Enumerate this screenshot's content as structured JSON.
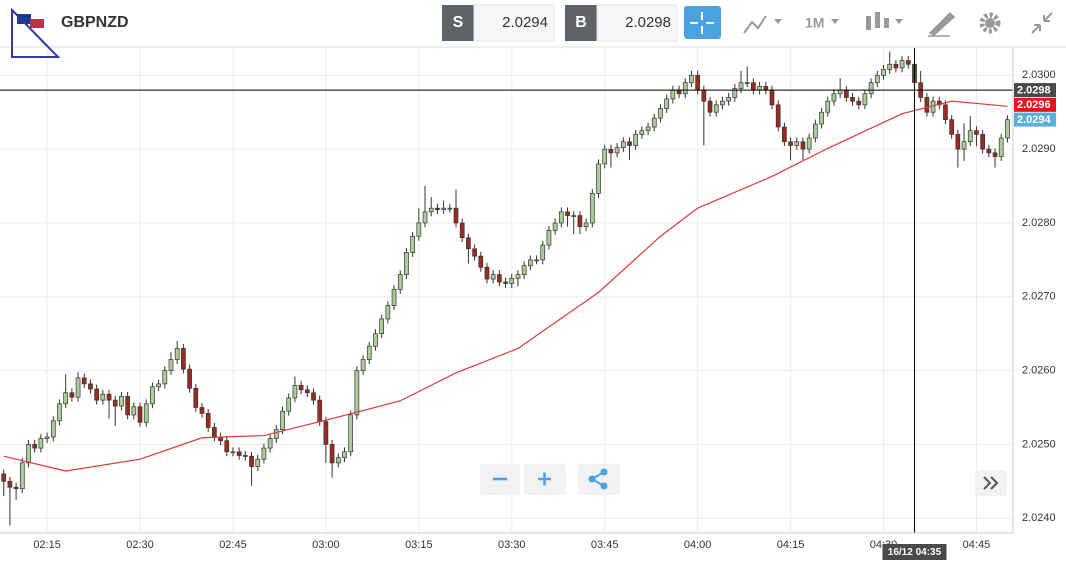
{
  "toolbar": {
    "symbol": "GBPNZD",
    "sell_label": "S",
    "sell_price": 2.0294,
    "buy_label": "B",
    "buy_price": 2.0298,
    "timeframe": "1M"
  },
  "chart_data": {
    "type": "candlestick",
    "x": [
      128,
      129,
      130,
      131,
      132,
      133,
      134,
      135,
      136,
      137,
      138,
      139,
      140,
      141,
      142,
      143,
      144,
      145,
      146,
      147,
      148,
      149,
      150,
      151,
      152,
      153,
      154,
      155,
      156,
      157,
      158,
      159,
      160,
      161,
      162,
      163,
      164,
      165,
      166,
      167,
      168,
      169,
      170,
      171,
      172,
      173,
      174,
      175,
      176,
      177,
      178,
      179,
      180,
      181,
      182,
      183,
      184,
      185,
      186,
      187,
      188,
      189,
      190,
      191,
      192,
      193,
      194,
      195,
      196,
      197,
      198,
      199,
      200,
      201,
      202,
      203,
      204,
      205,
      206,
      207,
      208,
      209,
      210,
      211,
      212,
      213,
      214,
      215,
      216,
      217,
      218,
      219,
      220,
      221,
      222,
      223,
      224,
      225,
      226,
      227,
      228,
      229,
      230,
      231,
      232,
      233,
      234,
      235,
      236,
      237,
      238,
      239,
      240,
      241,
      242,
      243,
      244,
      245,
      246,
      247,
      248,
      249,
      250,
      251,
      252,
      253,
      254,
      255,
      256,
      257,
      258,
      259,
      260,
      261,
      262,
      263,
      264,
      265,
      266,
      267,
      268,
      269,
      270,
      271,
      272,
      273,
      274,
      275,
      276,
      277,
      278,
      279,
      280,
      281,
      282,
      283,
      284,
      285,
      286,
      287,
      288,
      289,
      290
    ],
    "open": [
      2.0246,
      2.0245,
      2.02442,
      2.0244,
      2.02475,
      2.025,
      2.02495,
      2.02508,
      2.0251,
      2.02532,
      2.02555,
      2.0257,
      2.02564,
      2.0259,
      2.02582,
      2.02575,
      2.0256,
      2.02568,
      2.0256,
      2.02552,
      2.02565,
      2.0254,
      2.02551,
      2.0253,
      2.02555,
      2.02578,
      2.02582,
      2.026,
      2.02615,
      2.0263,
      2.02602,
      2.02576,
      2.0255,
      2.02542,
      2.02523,
      2.0251,
      2.02505,
      2.0249,
      2.0249,
      2.02485,
      2.02484,
      2.0247,
      2.0248,
      2.02495,
      2.02508,
      2.0252,
      2.02545,
      2.02563,
      2.0258,
      2.02574,
      2.0257,
      2.0256,
      2.02531,
      2.025,
      2.02475,
      2.02482,
      2.0249,
      2.0254,
      2.026,
      2.02615,
      2.02633,
      2.0265,
      2.0267,
      2.02688,
      2.0271,
      2.0273,
      2.0276,
      2.02782,
      2.028,
      2.02815,
      2.0282,
      2.02818,
      2.0282,
      2.0282,
      2.028,
      2.0278,
      2.02765,
      2.02755,
      2.0274,
      2.02724,
      2.0273,
      2.0272,
      2.02718,
      2.02725,
      2.0273,
      2.02742,
      2.0275,
      2.0275,
      2.0277,
      2.0279,
      2.028,
      2.02815,
      2.0281,
      2.0281,
      2.02795,
      2.028,
      2.0284,
      2.0288,
      2.029,
      2.02895,
      2.02902,
      2.0291,
      2.02905,
      2.0292,
      2.02925,
      2.0293,
      2.02942,
      2.02955,
      2.02968,
      2.0298,
      2.02975,
      2.0299,
      2.03,
      2.0298,
      2.02965,
      2.0295,
      2.0296,
      2.02965,
      2.0297,
      2.02982,
      2.0299,
      2.0299,
      2.0298,
      2.02985,
      2.0298,
      2.0296,
      2.0293,
      2.0291,
      2.02905,
      2.0291,
      2.029,
      2.02915,
      2.02934,
      2.0295,
      2.02965,
      2.02975,
      2.0298,
      2.0297,
      2.02965,
      2.0296,
      2.02975,
      2.0299,
      2.03,
      2.03008,
      2.03015,
      2.0301,
      2.0302,
      2.03015,
      2.0299,
      2.0297,
      2.0295,
      2.02965,
      2.0296,
      2.0294,
      2.0292,
      2.029,
      2.0291,
      2.02925,
      2.0292,
      2.029,
      2.02895,
      2.0289,
      2.02915
    ],
    "high": [
      2.02466,
      2.02456,
      2.02448,
      2.02482,
      2.02506,
      2.02506,
      2.02514,
      2.02516,
      2.02538,
      2.02561,
      2.02595,
      2.02576,
      2.02598,
      2.02596,
      2.02588,
      2.02581,
      2.02574,
      2.02574,
      2.02566,
      2.02571,
      2.02571,
      2.02557,
      2.02557,
      2.02561,
      2.02584,
      2.02588,
      2.02606,
      2.02625,
      2.0264,
      2.02636,
      2.02608,
      2.02582,
      2.02556,
      2.02548,
      2.02529,
      2.02516,
      2.02511,
      2.02496,
      2.02496,
      2.02491,
      2.0249,
      2.02486,
      2.02501,
      2.02514,
      2.02526,
      2.02551,
      2.02569,
      2.02592,
      2.02586,
      2.0258,
      2.02576,
      2.02566,
      2.02537,
      2.02506,
      2.02488,
      2.02496,
      2.02546,
      2.02606,
      2.02621,
      2.02639,
      2.02656,
      2.02676,
      2.02694,
      2.02716,
      2.02736,
      2.02766,
      2.02788,
      2.0282,
      2.0285,
      2.02835,
      2.02826,
      2.0283,
      2.02826,
      2.02845,
      2.02806,
      2.02786,
      2.02771,
      2.02761,
      2.02746,
      2.02736,
      2.02736,
      2.02726,
      2.02731,
      2.02736,
      2.02748,
      2.02756,
      2.02756,
      2.02776,
      2.02796,
      2.02806,
      2.02821,
      2.02821,
      2.02816,
      2.02816,
      2.02806,
      2.02846,
      2.02886,
      2.02906,
      2.02906,
      2.02908,
      2.02916,
      2.02916,
      2.02926,
      2.02931,
      2.02936,
      2.02948,
      2.02961,
      2.02974,
      2.02986,
      2.02986,
      2.02996,
      2.03006,
      2.03006,
      2.02986,
      2.02971,
      2.02966,
      2.02971,
      2.02976,
      2.02988,
      2.03006,
      2.03012,
      2.02996,
      2.02991,
      2.02991,
      2.02986,
      2.02966,
      2.02936,
      2.02916,
      2.02916,
      2.02916,
      2.02921,
      2.0294,
      2.02956,
      2.02971,
      2.02981,
      2.02996,
      2.02986,
      2.02976,
      2.02971,
      2.02981,
      2.02996,
      2.03006,
      2.03014,
      2.03032,
      2.03021,
      2.03026,
      2.03026,
      2.03021,
      2.03006,
      2.02976,
      2.02971,
      2.02971,
      2.02966,
      2.02946,
      2.02926,
      2.02935,
      2.02945,
      2.02931,
      2.02926,
      2.02906,
      2.02901,
      2.02921,
      2.02946
    ],
    "low": [
      2.0243,
      2.0239,
      2.02425,
      2.02434,
      2.02469,
      2.02489,
      2.02489,
      2.02502,
      2.02504,
      2.02526,
      2.02549,
      2.02558,
      2.02558,
      2.02576,
      2.02569,
      2.02554,
      2.02554,
      2.02535,
      2.02525,
      2.02546,
      2.02534,
      2.02534,
      2.02524,
      2.02524,
      2.02549,
      2.02572,
      2.02576,
      2.02594,
      2.02609,
      2.02596,
      2.0257,
      2.02544,
      2.02536,
      2.02517,
      2.02504,
      2.02499,
      2.02484,
      2.02484,
      2.02479,
      2.02478,
      2.02444,
      2.02464,
      2.02474,
      2.02489,
      2.02502,
      2.02514,
      2.02539,
      2.02557,
      2.02568,
      2.02564,
      2.02554,
      2.02525,
      2.02475,
      2.02455,
      2.02469,
      2.02476,
      2.02484,
      2.02534,
      2.02594,
      2.02609,
      2.02627,
      2.02644,
      2.02664,
      2.02682,
      2.02704,
      2.02724,
      2.02754,
      2.02776,
      2.02794,
      2.02809,
      2.02812,
      2.02812,
      2.02814,
      2.02794,
      2.02774,
      2.02745,
      2.02749,
      2.02734,
      2.02718,
      2.02718,
      2.02714,
      2.02712,
      2.02712,
      2.02714,
      2.02724,
      2.02736,
      2.02744,
      2.02744,
      2.02764,
      2.02784,
      2.02794,
      2.02795,
      2.02785,
      2.02785,
      2.02789,
      2.02794,
      2.02834,
      2.02874,
      2.02875,
      2.02889,
      2.02896,
      2.02885,
      2.02899,
      2.02914,
      2.02919,
      2.02924,
      2.02936,
      2.02949,
      2.02962,
      2.02969,
      2.02969,
      2.02984,
      2.02974,
      2.02905,
      2.02944,
      2.02944,
      2.02954,
      2.02959,
      2.02964,
      2.02976,
      2.02984,
      2.02974,
      2.02974,
      2.02974,
      2.02954,
      2.02924,
      2.02904,
      2.02885,
      2.02899,
      2.02885,
      2.02894,
      2.02909,
      2.02928,
      2.02944,
      2.02959,
      2.02969,
      2.02964,
      2.02959,
      2.02954,
      2.02954,
      2.02969,
      2.02984,
      2.02994,
      2.03002,
      2.03004,
      2.03004,
      2.03009,
      2.02984,
      2.02964,
      2.02944,
      2.02944,
      2.02954,
      2.02934,
      2.02914,
      2.02875,
      2.02884,
      2.02904,
      2.02904,
      2.02894,
      2.02889,
      2.02875,
      2.02884,
      2.02909
    ],
    "close": [
      2.0245,
      2.02442,
      2.0244,
      2.02475,
      2.025,
      2.02495,
      2.02508,
      2.0251,
      2.02532,
      2.02555,
      2.0257,
      2.02564,
      2.0259,
      2.02582,
      2.02575,
      2.0256,
      2.02568,
      2.0256,
      2.02552,
      2.02565,
      2.0254,
      2.02551,
      2.0253,
      2.02555,
      2.02578,
      2.02582,
      2.026,
      2.02615,
      2.0263,
      2.02602,
      2.02576,
      2.0255,
      2.02542,
      2.02523,
      2.0251,
      2.02505,
      2.0249,
      2.0249,
      2.02485,
      2.02484,
      2.0247,
      2.0248,
      2.02495,
      2.02508,
      2.0252,
      2.02545,
      2.02563,
      2.0258,
      2.02574,
      2.0257,
      2.0256,
      2.02531,
      2.025,
      2.02475,
      2.02482,
      2.0249,
      2.0254,
      2.026,
      2.02615,
      2.02633,
      2.0265,
      2.0267,
      2.02688,
      2.0271,
      2.0273,
      2.0276,
      2.02782,
      2.028,
      2.02815,
      2.0282,
      2.02818,
      2.0282,
      2.0282,
      2.028,
      2.0278,
      2.02765,
      2.02755,
      2.0274,
      2.02724,
      2.0273,
      2.0272,
      2.02718,
      2.02725,
      2.0273,
      2.02742,
      2.0275,
      2.0275,
      2.0277,
      2.0279,
      2.028,
      2.02815,
      2.0281,
      2.0281,
      2.02795,
      2.028,
      2.0284,
      2.0288,
      2.029,
      2.02895,
      2.02902,
      2.0291,
      2.02905,
      2.0292,
      2.02925,
      2.0293,
      2.02942,
      2.02955,
      2.02968,
      2.0298,
      2.02975,
      2.0299,
      2.03,
      2.0298,
      2.02965,
      2.0295,
      2.0296,
      2.02965,
      2.0297,
      2.02982,
      2.0299,
      2.0299,
      2.0298,
      2.02985,
      2.0298,
      2.0296,
      2.0293,
      2.0291,
      2.02905,
      2.0291,
      2.029,
      2.02915,
      2.02934,
      2.0295,
      2.02965,
      2.02975,
      2.0298,
      2.0297,
      2.02965,
      2.0296,
      2.02975,
      2.0299,
      2.03,
      2.03008,
      2.03015,
      2.0301,
      2.0302,
      2.03015,
      2.0299,
      2.0297,
      2.0295,
      2.02965,
      2.0296,
      2.0294,
      2.0292,
      2.029,
      2.0291,
      2.02925,
      2.0292,
      2.029,
      2.02895,
      2.0289,
      2.02915,
      2.0294
    ],
    "up_color": "#a8cf96",
    "down_color": "#9e2a1e",
    "moving_average": {
      "color": "#e0393e",
      "x": [
        128,
        138,
        150,
        160,
        170,
        181,
        192,
        201,
        211,
        224,
        234,
        240,
        252,
        261,
        273,
        281,
        290
      ],
      "values": [
        2.02484,
        2.02464,
        2.0248,
        2.02509,
        2.02512,
        2.02535,
        2.02559,
        2.02597,
        2.0263,
        2.02706,
        2.02782,
        2.0282,
        2.02863,
        2.02901,
        2.02948,
        2.02965,
        2.02958
      ]
    },
    "xlim": [
      127.4,
      290.9
    ],
    "xticks": [
      {
        "value": 135,
        "label": "02:15"
      },
      {
        "value": 150,
        "label": "02:30"
      },
      {
        "value": 165,
        "label": "02:45"
      },
      {
        "value": 180,
        "label": "03:00"
      },
      {
        "value": 195,
        "label": "03:15"
      },
      {
        "value": 210,
        "label": "03:30"
      },
      {
        "value": 225,
        "label": "03:45"
      },
      {
        "value": 240,
        "label": "04:00"
      },
      {
        "value": 255,
        "label": "04:15"
      },
      {
        "value": 270,
        "label": "04:30"
      },
      {
        "value": 285,
        "label": "04:45"
      }
    ],
    "ylim": [
      2.0238,
      2.03037
    ],
    "yticks": [
      {
        "value": 2.024,
        "label": "2.0240"
      },
      {
        "value": 2.025,
        "label": "2.0250"
      },
      {
        "value": 2.026,
        "label": "2.0260"
      },
      {
        "value": 2.027,
        "label": "2.0270"
      },
      {
        "value": 2.028,
        "label": "2.0280"
      },
      {
        "value": 2.029,
        "label": "2.0290"
      },
      {
        "value": 2.03,
        "label": "2.0300"
      }
    ],
    "grid": true,
    "price_labels": [
      {
        "value": 2.0296,
        "color": "#e8141c"
      },
      {
        "value": 2.0294,
        "color": "#5aaedc"
      }
    ],
    "crosshair": {
      "x": {
        "value": 275,
        "label": "16/12 04:35"
      },
      "y": 2.0298
    }
  }
}
